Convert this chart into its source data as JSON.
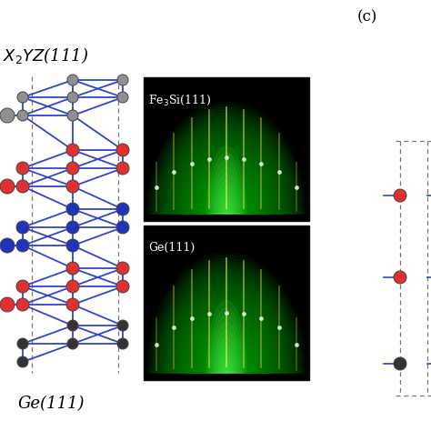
{
  "bg_color": "#ffffff",
  "atom_colors": {
    "gray": "#909090",
    "red": "#e03030",
    "blue": "#2233bb",
    "dark": "#333333"
  },
  "line_color": "#3344cc",
  "dashed_color": "#777777",
  "label_top": "$X_2YZ$(111)",
  "label_bottom": "Ge(111)",
  "label_c": "(c)",
  "leed_label_top": "Fe$_3$Si(111)",
  "leed_label_bottom": "Ge(111)"
}
